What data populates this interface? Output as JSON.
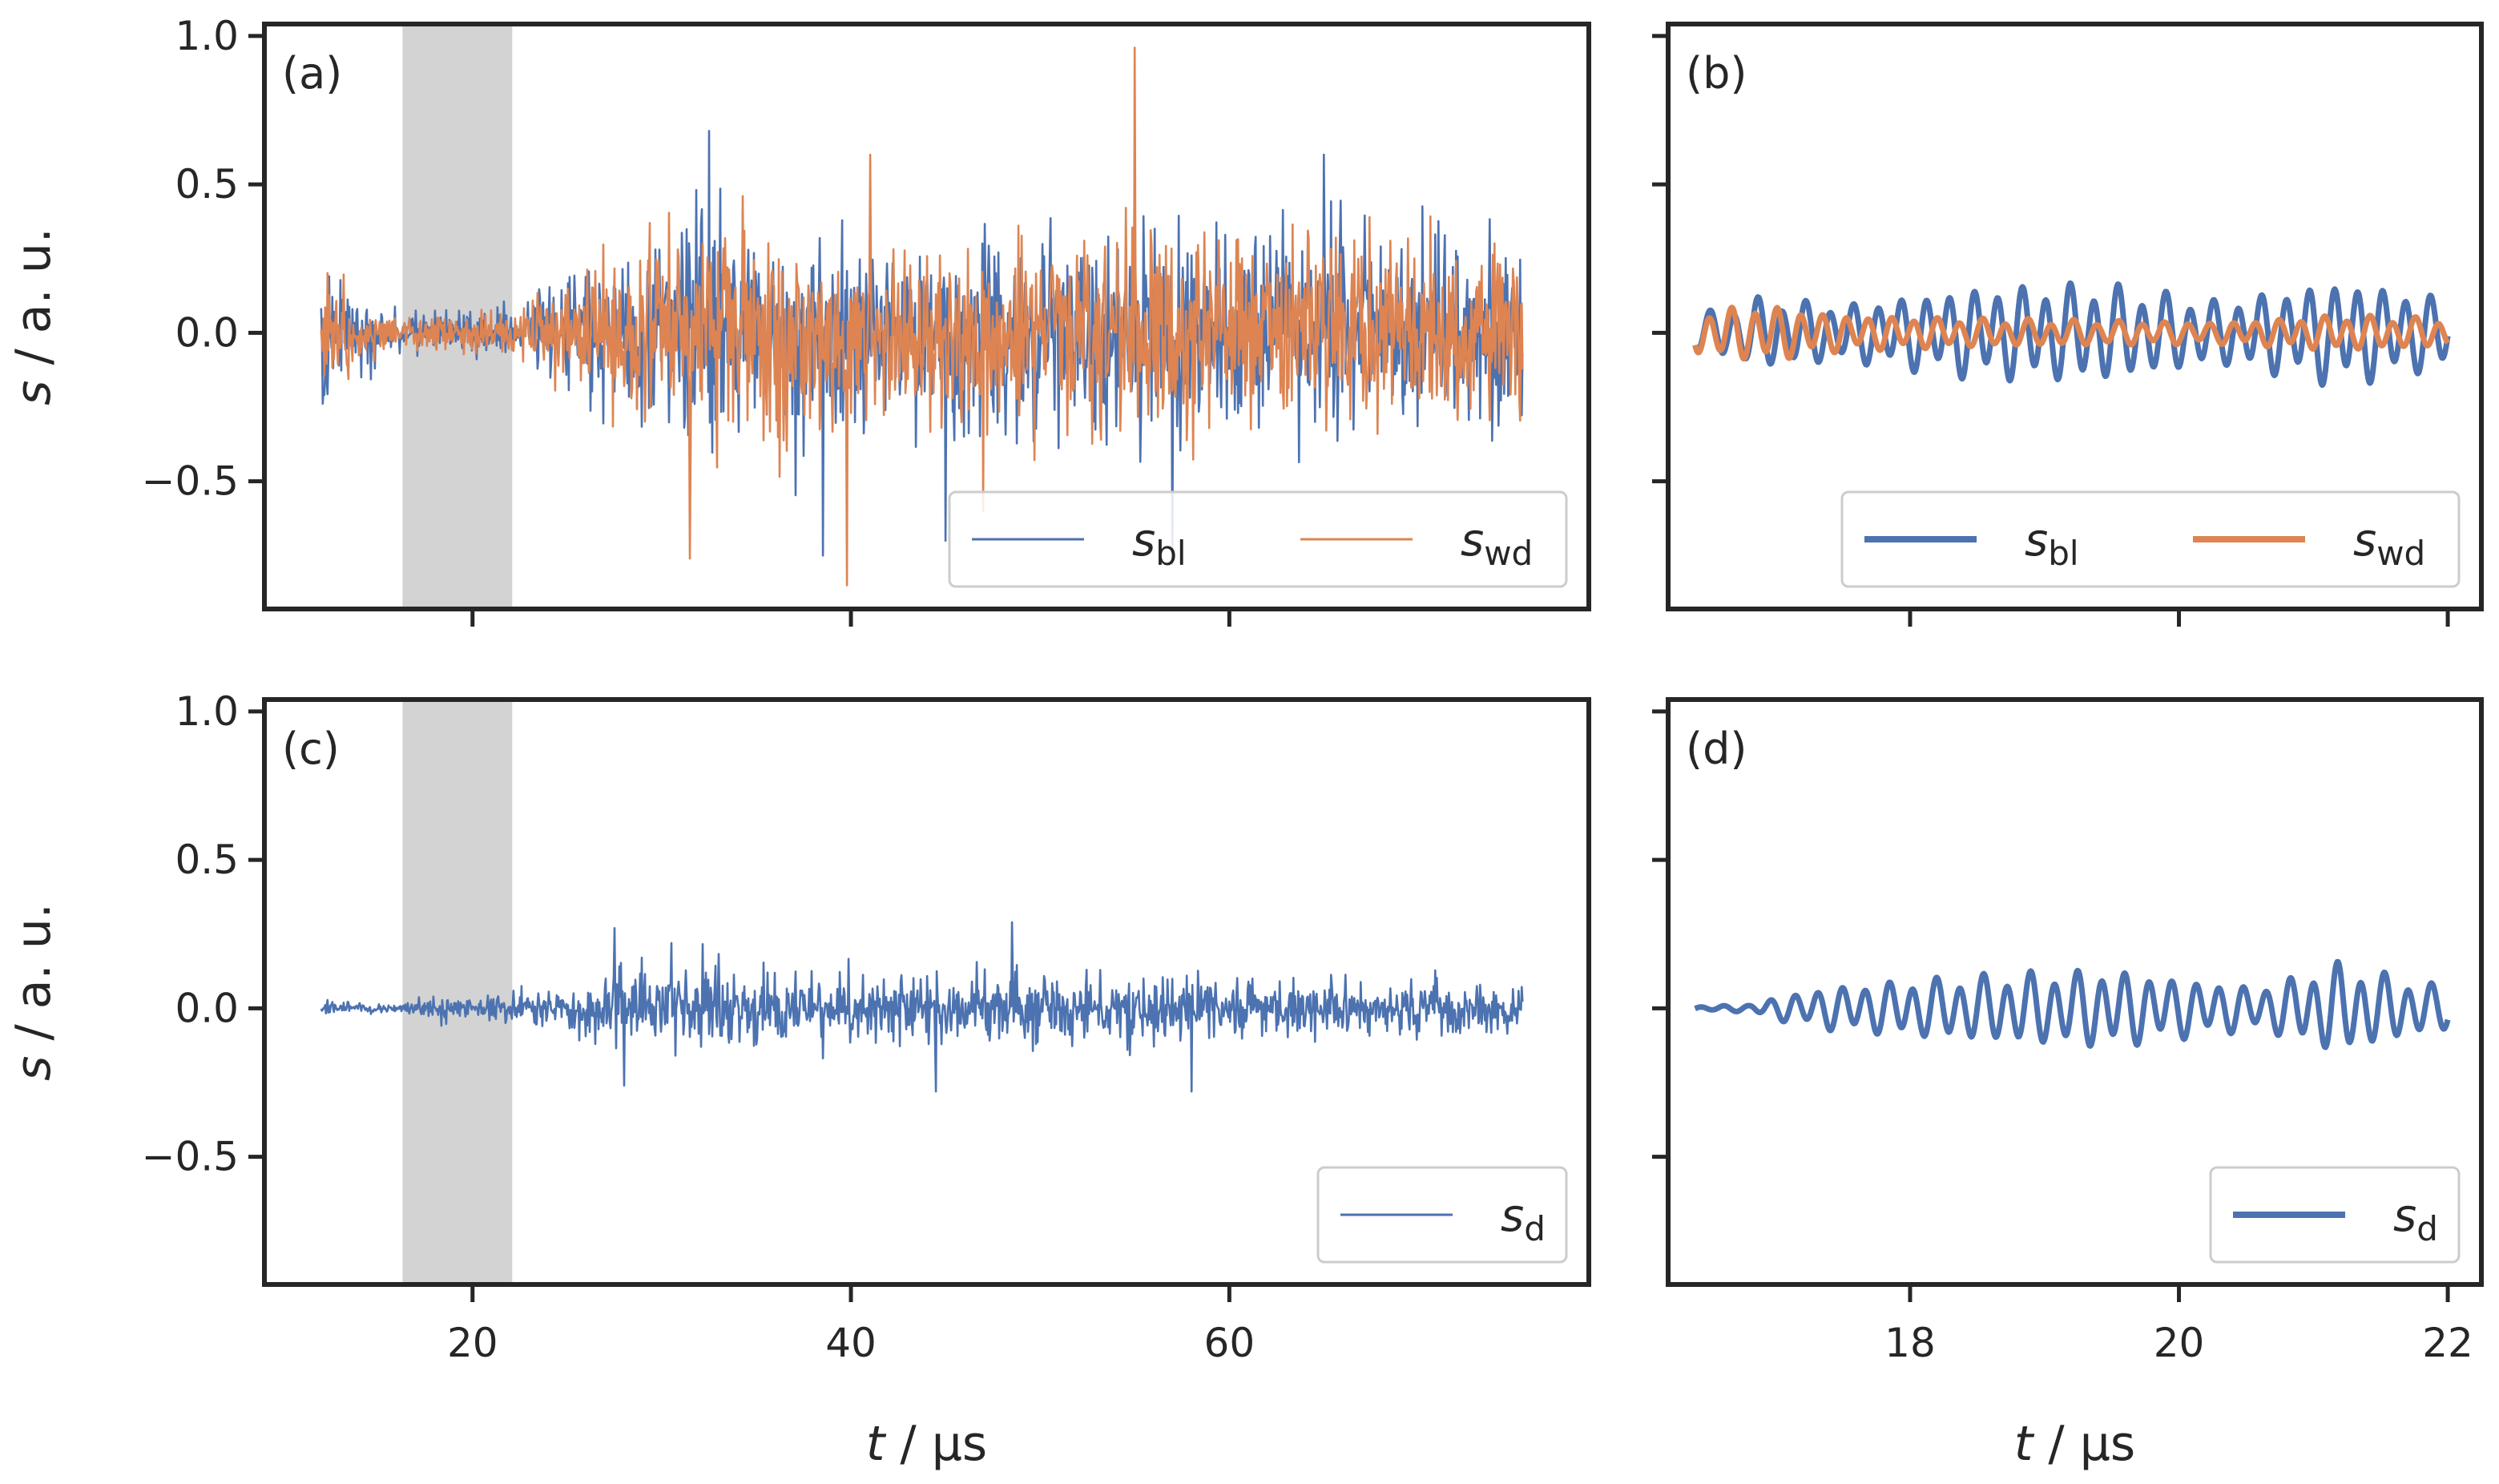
{
  "chart_data": [
    {
      "panel": "(a)",
      "type": "line",
      "xlim": [
        9,
        79
      ],
      "ylim": [
        -0.93,
        1.04
      ],
      "yticks": [
        1.0,
        0.5,
        0.0,
        -0.5
      ],
      "ytick_labels": [
        "1.0",
        "0.5",
        "0.0",
        "−0.5"
      ],
      "xticks": [
        20,
        40,
        60
      ],
      "xtick_labels": [
        "",
        "",
        ""
      ],
      "ylabel": "s / a. u.",
      "xlabel": "",
      "shaded_region": [
        16.3,
        22.1
      ],
      "legend": {
        "location": "lower-right",
        "columns": 2
      },
      "series": [
        {
          "name": "s_bl",
          "label_main": "s",
          "label_sub": "bl",
          "color": "#4C72B0",
          "t_start": 12,
          "t_end": 75.5,
          "envelope": [
            [
              12,
              0.32
            ],
            [
              16,
              0.08
            ],
            [
              22,
              0.12
            ],
            [
              26,
              0.32
            ],
            [
              32,
              0.55
            ],
            [
              40,
              0.5
            ],
            [
              50,
              0.45
            ],
            [
              58,
              0.5
            ],
            [
              66,
              0.45
            ],
            [
              75.5,
              0.42
            ]
          ],
          "peaks": [
            [
              32.5,
              0.68
            ],
            [
              55,
              0.62
            ],
            [
              65,
              0.6
            ],
            [
              38.5,
              -0.75
            ],
            [
              45,
              -0.7
            ],
            [
              57,
              -0.78
            ]
          ]
        },
        {
          "name": "s_wd",
          "label_main": "s",
          "label_sub": "wd",
          "color": "#DD8452",
          "t_start": 12,
          "t_end": 75.5,
          "envelope": [
            [
              12,
              0.32
            ],
            [
              16,
              0.06
            ],
            [
              22,
              0.1
            ],
            [
              26,
              0.3
            ],
            [
              32,
              0.5
            ],
            [
              40,
              0.48
            ],
            [
              50,
              0.45
            ],
            [
              58,
              0.48
            ],
            [
              66,
              0.42
            ],
            [
              75.5,
              0.4
            ]
          ],
          "peaks": [
            [
              55,
              0.96
            ],
            [
              41,
              0.6
            ],
            [
              31.5,
              -0.76
            ],
            [
              39.8,
              -0.85
            ],
            [
              47,
              -0.6
            ]
          ]
        }
      ]
    },
    {
      "panel": "(b)",
      "type": "line",
      "xlim": [
        16.2,
        22.25
      ],
      "ylim": [
        -0.93,
        1.04
      ],
      "yticks": [
        1.0,
        0.5,
        0.0,
        -0.5
      ],
      "ytick_labels": [
        "",
        "",
        "",
        ""
      ],
      "xticks": [
        18,
        20,
        22
      ],
      "xtick_labels": [
        "",
        "",
        ""
      ],
      "ylabel": "",
      "xlabel": "",
      "legend": {
        "location": "lower-right",
        "columns": 2
      },
      "series": [
        {
          "name": "s_bl",
          "label_main": "s",
          "label_sub": "bl",
          "color": "#4C72B0",
          "t_start": 16.4,
          "t_end": 22.0,
          "freq": 5.6,
          "envelope": [
            [
              16.4,
              0.05
            ],
            [
              16.9,
              0.1
            ],
            [
              17.5,
              0.08
            ],
            [
              18.5,
              0.13
            ],
            [
              19.4,
              0.14
            ],
            [
              20.3,
              0.09
            ],
            [
              21.2,
              0.15
            ],
            [
              22.0,
              0.1
            ]
          ]
        },
        {
          "name": "s_wd",
          "label_main": "s",
          "label_sub": "wd",
          "color": "#DD8452",
          "t_start": 16.4,
          "t_end": 22.0,
          "freq": 5.9,
          "envelope": [
            [
              16.4,
              0.06
            ],
            [
              16.9,
              0.08
            ],
            [
              17.5,
              0.05
            ],
            [
              18.5,
              0.04
            ],
            [
              19.4,
              0.035
            ],
            [
              20.3,
              0.03
            ],
            [
              21.2,
              0.05
            ],
            [
              22.0,
              0.04
            ]
          ]
        }
      ]
    },
    {
      "panel": "(c)",
      "type": "line",
      "xlim": [
        9,
        79
      ],
      "ylim": [
        -0.93,
        1.04
      ],
      "yticks": [
        1.0,
        0.5,
        0.0,
        -0.5
      ],
      "ytick_labels": [
        "1.0",
        "0.5",
        "0.0",
        "−0.5"
      ],
      "xticks": [
        20,
        40,
        60
      ],
      "xtick_labels": [
        "20",
        "40",
        "60"
      ],
      "ylabel": "s / a. u.",
      "xlabel": "t / µs",
      "shaded_region": [
        16.3,
        22.1
      ],
      "legend": {
        "location": "lower-right",
        "columns": 1
      },
      "series": [
        {
          "name": "s_d",
          "label_main": "s",
          "label_sub": "d",
          "color": "#4C72B0",
          "t_start": 12,
          "t_end": 75.5,
          "envelope": [
            [
              12,
              0.03
            ],
            [
              16,
              0.02
            ],
            [
              18,
              0.06
            ],
            [
              22,
              0.07
            ],
            [
              25,
              0.09
            ],
            [
              28,
              0.18
            ],
            [
              32,
              0.2
            ],
            [
              40,
              0.15
            ],
            [
              48,
              0.16
            ],
            [
              58,
              0.15
            ],
            [
              66,
              0.13
            ],
            [
              75.5,
              0.12
            ]
          ],
          "peaks": [
            [
              27.5,
              0.27
            ],
            [
              48.5,
              0.29
            ],
            [
              30.5,
              0.22
            ],
            [
              28,
              -0.26
            ],
            [
              44.5,
              -0.28
            ],
            [
              58,
              -0.28
            ]
          ]
        }
      ]
    },
    {
      "panel": "(d)",
      "type": "line",
      "xlim": [
        16.2,
        22.25
      ],
      "ylim": [
        -0.93,
        1.04
      ],
      "yticks": [
        1.0,
        0.5,
        0.0,
        -0.5
      ],
      "ytick_labels": [
        "",
        "",
        "",
        ""
      ],
      "xticks": [
        18,
        20,
        22
      ],
      "xtick_labels": [
        "18",
        "20",
        "22"
      ],
      "ylabel": "",
      "xlabel": "t / µs",
      "legend": {
        "location": "lower-right",
        "columns": 1
      },
      "series": [
        {
          "name": "s_d",
          "label_main": "s",
          "label_sub": "d",
          "color": "#4C72B0",
          "t_start": 16.4,
          "t_end": 22.0,
          "freq": 5.7,
          "envelope": [
            [
              16.4,
              0.005
            ],
            [
              16.8,
              0.01
            ],
            [
              17.1,
              0.04
            ],
            [
              17.4,
              0.06
            ],
            [
              18.0,
              0.08
            ],
            [
              18.8,
              0.1
            ],
            [
              19.5,
              0.11
            ],
            [
              20.1,
              0.08
            ],
            [
              20.6,
              0.06
            ],
            [
              21.2,
              0.13
            ],
            [
              21.6,
              0.09
            ],
            [
              22.0,
              0.06
            ]
          ]
        }
      ]
    }
  ]
}
